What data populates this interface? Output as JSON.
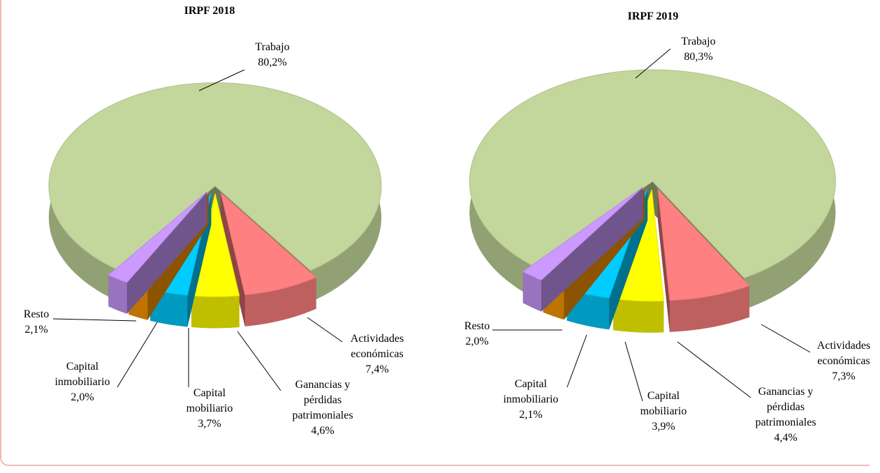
{
  "chart_data": [
    {
      "type": "pie",
      "title": "IRPF 2018",
      "categories": [
        "Trabajo",
        "Actividades\neconómicas",
        "Ganancias y\npérdidas\npatrimoniales",
        "Capital\nmobiliario",
        "Capital\ninmobiliario",
        "Resto"
      ],
      "values": [
        80.2,
        7.4,
        4.6,
        3.7,
        2.0,
        2.1
      ],
      "value_labels": [
        "80,2%",
        "7,4%",
        "4,6%",
        "3,7%",
        "2,0%",
        "2,1%"
      ],
      "colors": [
        "#c3d69b",
        "#ff8080",
        "#ffff00",
        "#00ccff",
        "#ff9900",
        "#cc99ff"
      ]
    },
    {
      "type": "pie",
      "title": "IRPF 2019",
      "categories": [
        "Trabajo",
        "Actividades\neconómicas",
        "Ganancias y\npérdidas\npatrimoniales",
        "Capital\nmobiliario",
        "Capital\ninmobiliario",
        "Resto"
      ],
      "values": [
        80.3,
        7.3,
        4.4,
        3.9,
        2.1,
        2.0
      ],
      "value_labels": [
        "80,3%",
        "7,3%",
        "4,4%",
        "3,9%",
        "2,1%",
        "2,0%"
      ],
      "colors": [
        "#c3d69b",
        "#ff8080",
        "#ffff00",
        "#00ccff",
        "#ff9900",
        "#cc99ff"
      ]
    }
  ]
}
